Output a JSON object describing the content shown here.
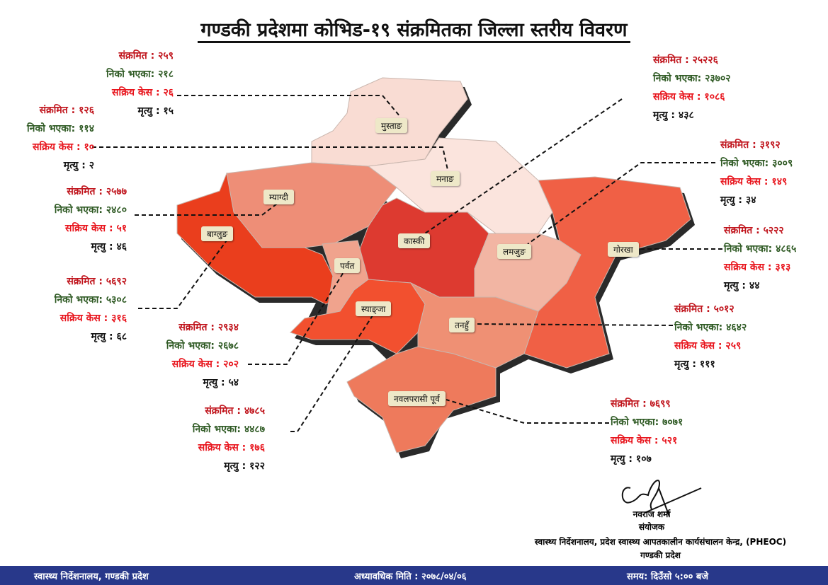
{
  "title": "गण्डकी प्रदेशमा कोभिड-१९ संक्रमितका जिल्ला स्तरीय विवरण",
  "labels": {
    "infected": "संक्रमित",
    "recovered": "निको भएका",
    "active": "सक्रिय केस",
    "deaths": "मृत्यु"
  },
  "colors": {
    "infected": "#c0141c",
    "recovered": "#2f5a24",
    "active": "#e8141c",
    "deaths": "#111111",
    "footer": "#28388a"
  },
  "districts": [
    {
      "name": "मुस्ताङ",
      "infected": "२५९",
      "recovered": "२१८",
      "active": "२६",
      "deaths": "१५",
      "fill": "#f9dcd3"
    },
    {
      "name": "मनाङ",
      "infected": "१२६",
      "recovered": "११४",
      "active": "१०",
      "deaths": "२",
      "fill": "#fbe4dd"
    },
    {
      "name": "म्याग्दी",
      "infected": "२५७७",
      "recovered": "२४८०",
      "active": "५१",
      "deaths": "४६",
      "fill": "#ee8e77"
    },
    {
      "name": "बाग्लुङ",
      "infected": "५६९२",
      "recovered": "५३०८",
      "active": "३१६",
      "deaths": "६८",
      "fill": "#ea3e1d"
    },
    {
      "name": "पर्वत",
      "infected": "२९३४",
      "recovered": "२६७८",
      "active": "२०२",
      "deaths": "५४",
      "fill": "#f0a38d"
    },
    {
      "name": "स्याङ्जा",
      "infected": "४७८५",
      "recovered": "४४८७",
      "active": "१७६",
      "deaths": "१२२",
      "fill": "#f2502f"
    },
    {
      "name": "कास्की",
      "infected": "२५२२६",
      "recovered": "२३७०२",
      "active": "१०८६",
      "deaths": "४३८",
      "fill": "#dd3a30"
    },
    {
      "name": "लमजुङ",
      "infected": "३१९२",
      "recovered": "३००९",
      "active": "१४९",
      "deaths": "३४",
      "fill": "#f2b5a3"
    },
    {
      "name": "गोरखा",
      "infected": "५२२२",
      "recovered": "४८६५",
      "active": "३१३",
      "deaths": "४४",
      "fill": "#f06045"
    },
    {
      "name": "तनहुँ",
      "infected": "५०१२",
      "recovered": "४६४२",
      "active": "२५९",
      "deaths": "१११",
      "fill": "#ef9074"
    },
    {
      "name": "नवलपरासी पूर्व",
      "infected": "७६९९",
      "recovered": "७०७१",
      "active": "५२१",
      "deaths": "१०७",
      "fill": "#ee7a5c"
    }
  ],
  "signatory": {
    "name": "नवराज शर्मा",
    "role": "संयोजक",
    "org": "स्वास्थ्य निर्देशनालय, प्रदेश स्वास्थ्य आपतकालीन कार्यसंचालन केन्द्र, (PHEOC)",
    "province": "गण्डकी प्रदेश"
  },
  "footer": {
    "left": "स्वास्थ्य निर्देशनालय, गण्डकी प्रदेश",
    "center": "अध्यावधिक मिति : २०७८/०४/०६",
    "right": "समय: दिउँसो ५:०० बजे"
  }
}
